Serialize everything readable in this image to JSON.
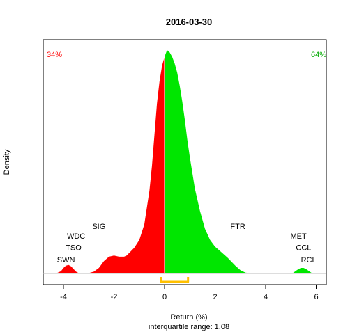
{
  "chart_data": {
    "type": "area",
    "title": "2016-03-30",
    "xlabel": "Return (%)",
    "ylabel": "Density",
    "subtitle": "interquartile range: 1.08",
    "xlim": [
      -4.8,
      6.4
    ],
    "ylim": [
      0,
      1
    ],
    "x_ticks": [
      -4,
      -2,
      0,
      2,
      4,
      6
    ],
    "x_tick_labels": [
      "-4",
      "-2",
      "0",
      "2",
      "4",
      "6"
    ],
    "split_x": 0.0,
    "neg_share_label": "34%",
    "pos_share_label": "64%",
    "negative_color": "#ff0000",
    "positive_color": "#00e600",
    "iqr_color": "#ffc000",
    "iqr": [
      -0.15,
      0.93
    ],
    "density": {
      "x": [
        -4.8,
        -4.3,
        -4.1,
        -4.0,
        -3.9,
        -3.8,
        -3.7,
        -3.6,
        -3.5,
        -3.4,
        -3.3,
        -3.2,
        -3.0,
        -2.8,
        -2.6,
        -2.4,
        -2.2,
        -2.0,
        -1.8,
        -1.6,
        -1.5,
        -1.4,
        -1.2,
        -1.0,
        -0.8,
        -0.6,
        -0.5,
        -0.4,
        -0.3,
        -0.2,
        -0.1,
        0.0,
        0.1,
        0.2,
        0.3,
        0.4,
        0.5,
        0.6,
        0.7,
        0.8,
        0.9,
        1.0,
        1.1,
        1.2,
        1.4,
        1.6,
        1.8,
        2.0,
        2.2,
        2.5,
        2.8,
        3.0,
        3.2,
        3.5,
        4.0,
        4.5,
        5.0,
        5.1,
        5.2,
        5.3,
        5.4,
        5.5,
        5.6,
        5.7,
        5.8,
        5.9,
        6.0,
        6.4
      ],
      "y": [
        0.0,
        0.0,
        0.01,
        0.025,
        0.035,
        0.038,
        0.032,
        0.02,
        0.008,
        0.002,
        0.0,
        0.0,
        0.002,
        0.008,
        0.025,
        0.055,
        0.075,
        0.08,
        0.075,
        0.075,
        0.08,
        0.092,
        0.115,
        0.15,
        0.22,
        0.37,
        0.48,
        0.62,
        0.76,
        0.86,
        0.93,
        0.97,
        1.0,
        0.99,
        0.97,
        0.94,
        0.9,
        0.84,
        0.77,
        0.69,
        0.6,
        0.52,
        0.45,
        0.38,
        0.28,
        0.2,
        0.15,
        0.12,
        0.1,
        0.07,
        0.035,
        0.015,
        0.004,
        0.0,
        0.0,
        0.0,
        0.0,
        0.004,
        0.012,
        0.02,
        0.025,
        0.025,
        0.02,
        0.012,
        0.004,
        0.0,
        0.0,
        0.0
      ]
    },
    "annotations": [
      {
        "label": "SWN",
        "x": -3.9,
        "y": 0.05
      },
      {
        "label": "TSO",
        "x": -3.6,
        "y": 0.105
      },
      {
        "label": "WDC",
        "x": -3.5,
        "y": 0.155
      },
      {
        "label": "SIG",
        "x": -2.6,
        "y": 0.2
      },
      {
        "label": "FTR",
        "x": 2.9,
        "y": 0.2
      },
      {
        "label": "MET",
        "x": 5.3,
        "y": 0.155
      },
      {
        "label": "CCL",
        "x": 5.5,
        "y": 0.105
      },
      {
        "label": "RCL",
        "x": 5.7,
        "y": 0.05
      }
    ]
  }
}
